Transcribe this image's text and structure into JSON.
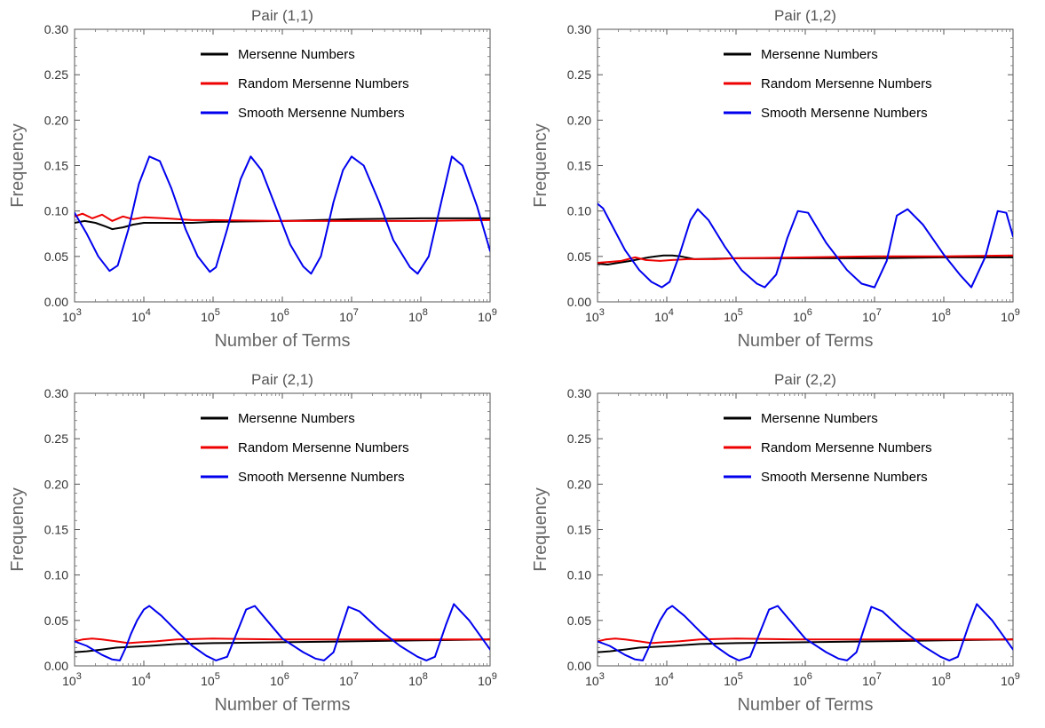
{
  "chart_data": [
    {
      "type": "line",
      "title": "Pair (1,1)",
      "xlabel": "Number of Terms",
      "ylabel": "Frequency",
      "xscale": "log",
      "xlim": [
        1000,
        1000000000
      ],
      "ylim": [
        0,
        0.3
      ],
      "yticks": [
        "0.00",
        "0.05",
        "0.10",
        "0.15",
        "0.20",
        "0.25",
        "0.30"
      ],
      "xticks": [
        {
          "base": "10",
          "exp": "3"
        },
        {
          "base": "10",
          "exp": "4"
        },
        {
          "base": "10",
          "exp": "5"
        },
        {
          "base": "10",
          "exp": "6"
        },
        {
          "base": "10",
          "exp": "7"
        },
        {
          "base": "10",
          "exp": "8"
        },
        {
          "base": "10",
          "exp": "9"
        }
      ],
      "legend_position": "top-center",
      "grid": false,
      "series": [
        {
          "name": "Mersenne Numbers",
          "color": "#000000",
          "x": [
            1000,
            1400,
            2000,
            2800,
            3500,
            5000,
            7000,
            10000,
            20000,
            50000,
            100000,
            1000000,
            10000000,
            100000000,
            1000000000
          ],
          "y": [
            0.087,
            0.089,
            0.087,
            0.083,
            0.08,
            0.082,
            0.085,
            0.087,
            0.087,
            0.087,
            0.088,
            0.089,
            0.091,
            0.092,
            0.092
          ]
        },
        {
          "name": "Random Mersenne Numbers",
          "color": "#ee0000",
          "x": [
            1000,
            1300,
            1800,
            2500,
            3500,
            5000,
            7000,
            10000,
            20000,
            50000,
            100000,
            1000000,
            10000000,
            100000000,
            1000000000
          ],
          "y": [
            0.094,
            0.097,
            0.092,
            0.096,
            0.089,
            0.094,
            0.091,
            0.093,
            0.092,
            0.09,
            0.09,
            0.089,
            0.089,
            0.089,
            0.09
          ]
        },
        {
          "name": "Smooth Mersenne Numbers",
          "color": "#0000ee",
          "x": [
            1000,
            1500,
            2200,
            3200,
            4200,
            6000,
            8500,
            12000,
            17000,
            25000,
            40000,
            60000,
            90000,
            110000,
            160000,
            250000,
            350000,
            500000,
            800000,
            1300000,
            2000000,
            2600000,
            3600000,
            5500000,
            7500000,
            10000000,
            15000000,
            25000000,
            40000000,
            70000000,
            90000000,
            130000000,
            200000000,
            280000000,
            400000000,
            650000000,
            1000000000
          ],
          "y": [
            0.098,
            0.075,
            0.05,
            0.034,
            0.04,
            0.08,
            0.13,
            0.16,
            0.155,
            0.125,
            0.08,
            0.05,
            0.033,
            0.038,
            0.08,
            0.135,
            0.16,
            0.145,
            0.105,
            0.063,
            0.039,
            0.031,
            0.05,
            0.11,
            0.145,
            0.16,
            0.15,
            0.11,
            0.068,
            0.038,
            0.031,
            0.05,
            0.112,
            0.16,
            0.15,
            0.105,
            0.056
          ]
        }
      ]
    },
    {
      "type": "line",
      "title": "Pair (1,2)",
      "xlabel": "Number of Terms",
      "ylabel": "Frequency",
      "xscale": "log",
      "xlim": [
        1000,
        1000000000
      ],
      "ylim": [
        0,
        0.3
      ],
      "yticks": [
        "0.00",
        "0.05",
        "0.10",
        "0.15",
        "0.20",
        "0.25",
        "0.30"
      ],
      "xticks": [
        {
          "base": "10",
          "exp": "3"
        },
        {
          "base": "10",
          "exp": "4"
        },
        {
          "base": "10",
          "exp": "5"
        },
        {
          "base": "10",
          "exp": "6"
        },
        {
          "base": "10",
          "exp": "7"
        },
        {
          "base": "10",
          "exp": "8"
        },
        {
          "base": "10",
          "exp": "9"
        }
      ],
      "legend_position": "top-center",
      "grid": false,
      "series": [
        {
          "name": "Mersenne Numbers",
          "color": "#000000",
          "x": [
            1000,
            1400,
            2000,
            3000,
            4000,
            5500,
            7000,
            9000,
            12000,
            16000,
            25000,
            100000,
            1000000,
            10000000,
            100000000,
            1000000000
          ],
          "y": [
            0.042,
            0.041,
            0.043,
            0.045,
            0.047,
            0.049,
            0.05,
            0.051,
            0.051,
            0.05,
            0.047,
            0.048,
            0.048,
            0.048,
            0.049,
            0.049
          ]
        },
        {
          "name": "Random Mersenne Numbers",
          "color": "#ee0000",
          "x": [
            1000,
            1500,
            2200,
            3500,
            5000,
            8000,
            12000,
            20000,
            50000,
            100000,
            1000000,
            10000000,
            100000000,
            1000000000
          ],
          "y": [
            0.043,
            0.044,
            0.045,
            0.049,
            0.046,
            0.045,
            0.046,
            0.047,
            0.047,
            0.048,
            0.049,
            0.05,
            0.05,
            0.051
          ]
        },
        {
          "name": "Smooth Mersenne Numbers",
          "color": "#0000ee",
          "x": [
            1000,
            1200,
            1600,
            2500,
            4000,
            6000,
            8500,
            11000,
            15000,
            22000,
            28000,
            40000,
            70000,
            120000,
            200000,
            260000,
            380000,
            550000,
            780000,
            1100000,
            2000000,
            4000000,
            6500000,
            10000000,
            15000000,
            21000000,
            30000000,
            50000000,
            100000000,
            170000000,
            250000000,
            400000000,
            600000000,
            800000000,
            1000000000
          ],
          "y": [
            0.108,
            0.103,
            0.085,
            0.057,
            0.035,
            0.022,
            0.016,
            0.022,
            0.05,
            0.09,
            0.102,
            0.09,
            0.06,
            0.035,
            0.02,
            0.016,
            0.03,
            0.07,
            0.1,
            0.098,
            0.065,
            0.035,
            0.02,
            0.016,
            0.045,
            0.095,
            0.102,
            0.085,
            0.052,
            0.03,
            0.016,
            0.05,
            0.1,
            0.098,
            0.072
          ]
        }
      ]
    },
    {
      "type": "line",
      "title": "Pair (2,1)",
      "xlabel": "Number of Terms",
      "ylabel": "Frequency",
      "xscale": "log",
      "xlim": [
        1000,
        1000000000
      ],
      "ylim": [
        0,
        0.3
      ],
      "yticks": [
        "0.00",
        "0.05",
        "0.10",
        "0.15",
        "0.20",
        "0.25",
        "0.30"
      ],
      "xticks": [
        {
          "base": "10",
          "exp": "3"
        },
        {
          "base": "10",
          "exp": "4"
        },
        {
          "base": "10",
          "exp": "5"
        },
        {
          "base": "10",
          "exp": "6"
        },
        {
          "base": "10",
          "exp": "7"
        },
        {
          "base": "10",
          "exp": "8"
        },
        {
          "base": "10",
          "exp": "9"
        }
      ],
      "legend_position": "top-center",
      "grid": false,
      "series": [
        {
          "name": "Mersenne Numbers",
          "color": "#000000",
          "x": [
            1000,
            1500,
            2500,
            4000,
            7000,
            12000,
            30000,
            100000,
            1000000,
            10000000,
            100000000,
            1000000000
          ],
          "y": [
            0.015,
            0.016,
            0.018,
            0.02,
            0.021,
            0.022,
            0.024,
            0.025,
            0.026,
            0.027,
            0.028,
            0.029
          ]
        },
        {
          "name": "Random Mersenne Numbers",
          "color": "#ee0000",
          "x": [
            1000,
            1300,
            1800,
            2500,
            4000,
            6000,
            9000,
            15000,
            30000,
            100000,
            1000000,
            10000000,
            100000000,
            1000000000
          ],
          "y": [
            0.027,
            0.029,
            0.03,
            0.029,
            0.027,
            0.025,
            0.026,
            0.027,
            0.029,
            0.03,
            0.029,
            0.029,
            0.029,
            0.029
          ]
        },
        {
          "name": "Smooth Mersenne Numbers",
          "color": "#0000ee",
          "x": [
            1000,
            1500,
            2500,
            3500,
            4500,
            5500,
            6500,
            8000,
            10000,
            12000,
            18000,
            30000,
            50000,
            80000,
            110000,
            160000,
            230000,
            300000,
            400000,
            600000,
            1000000,
            2000000,
            3000000,
            4000000,
            5500000,
            7000000,
            9000000,
            13000000,
            25000000,
            50000000,
            90000000,
            120000000,
            160000000,
            230000000,
            300000000,
            500000000,
            1000000000
          ],
          "y": [
            0.027,
            0.022,
            0.012,
            0.007,
            0.006,
            0.02,
            0.035,
            0.05,
            0.062,
            0.066,
            0.055,
            0.038,
            0.022,
            0.011,
            0.006,
            0.01,
            0.04,
            0.062,
            0.066,
            0.05,
            0.03,
            0.015,
            0.008,
            0.006,
            0.015,
            0.04,
            0.065,
            0.06,
            0.04,
            0.022,
            0.01,
            0.006,
            0.01,
            0.045,
            0.068,
            0.05,
            0.018
          ]
        }
      ]
    },
    {
      "type": "line",
      "title": "Pair (2,2)",
      "xlabel": "Number of Terms",
      "ylabel": "Frequency",
      "xscale": "log",
      "xlim": [
        1000,
        1000000000
      ],
      "ylim": [
        0,
        0.3
      ],
      "yticks": [
        "0.00",
        "0.05",
        "0.10",
        "0.15",
        "0.20",
        "0.25",
        "0.30"
      ],
      "xticks": [
        {
          "base": "10",
          "exp": "3"
        },
        {
          "base": "10",
          "exp": "4"
        },
        {
          "base": "10",
          "exp": "5"
        },
        {
          "base": "10",
          "exp": "6"
        },
        {
          "base": "10",
          "exp": "7"
        },
        {
          "base": "10",
          "exp": "8"
        },
        {
          "base": "10",
          "exp": "9"
        }
      ],
      "legend_position": "top-center",
      "grid": false,
      "series": [
        {
          "name": "Mersenne Numbers",
          "color": "#000000",
          "x": [
            1000,
            1500,
            2500,
            4000,
            7000,
            12000,
            30000,
            100000,
            1000000,
            10000000,
            100000000,
            1000000000
          ],
          "y": [
            0.015,
            0.016,
            0.018,
            0.02,
            0.021,
            0.022,
            0.024,
            0.025,
            0.026,
            0.027,
            0.028,
            0.029
          ]
        },
        {
          "name": "Random Mersenne Numbers",
          "color": "#ee0000",
          "x": [
            1000,
            1300,
            1800,
            2500,
            4000,
            6000,
            9000,
            15000,
            30000,
            100000,
            1000000,
            10000000,
            100000000,
            1000000000
          ],
          "y": [
            0.027,
            0.029,
            0.03,
            0.029,
            0.027,
            0.025,
            0.026,
            0.027,
            0.029,
            0.03,
            0.029,
            0.029,
            0.029,
            0.029
          ]
        },
        {
          "name": "Smooth Mersenne Numbers",
          "color": "#0000ee",
          "x": [
            1000,
            1500,
            2500,
            3500,
            4500,
            5500,
            6500,
            8000,
            10000,
            12000,
            18000,
            30000,
            50000,
            80000,
            110000,
            160000,
            230000,
            300000,
            400000,
            600000,
            1000000,
            2000000,
            3000000,
            4000000,
            5500000,
            7000000,
            9000000,
            13000000,
            25000000,
            50000000,
            90000000,
            120000000,
            160000000,
            230000000,
            300000000,
            500000000,
            1000000000
          ],
          "y": [
            0.027,
            0.022,
            0.012,
            0.007,
            0.006,
            0.02,
            0.035,
            0.05,
            0.062,
            0.066,
            0.055,
            0.038,
            0.022,
            0.011,
            0.006,
            0.01,
            0.04,
            0.062,
            0.066,
            0.05,
            0.03,
            0.015,
            0.008,
            0.006,
            0.015,
            0.04,
            0.065,
            0.06,
            0.04,
            0.022,
            0.01,
            0.006,
            0.01,
            0.045,
            0.068,
            0.05,
            0.018
          ]
        }
      ]
    }
  ]
}
